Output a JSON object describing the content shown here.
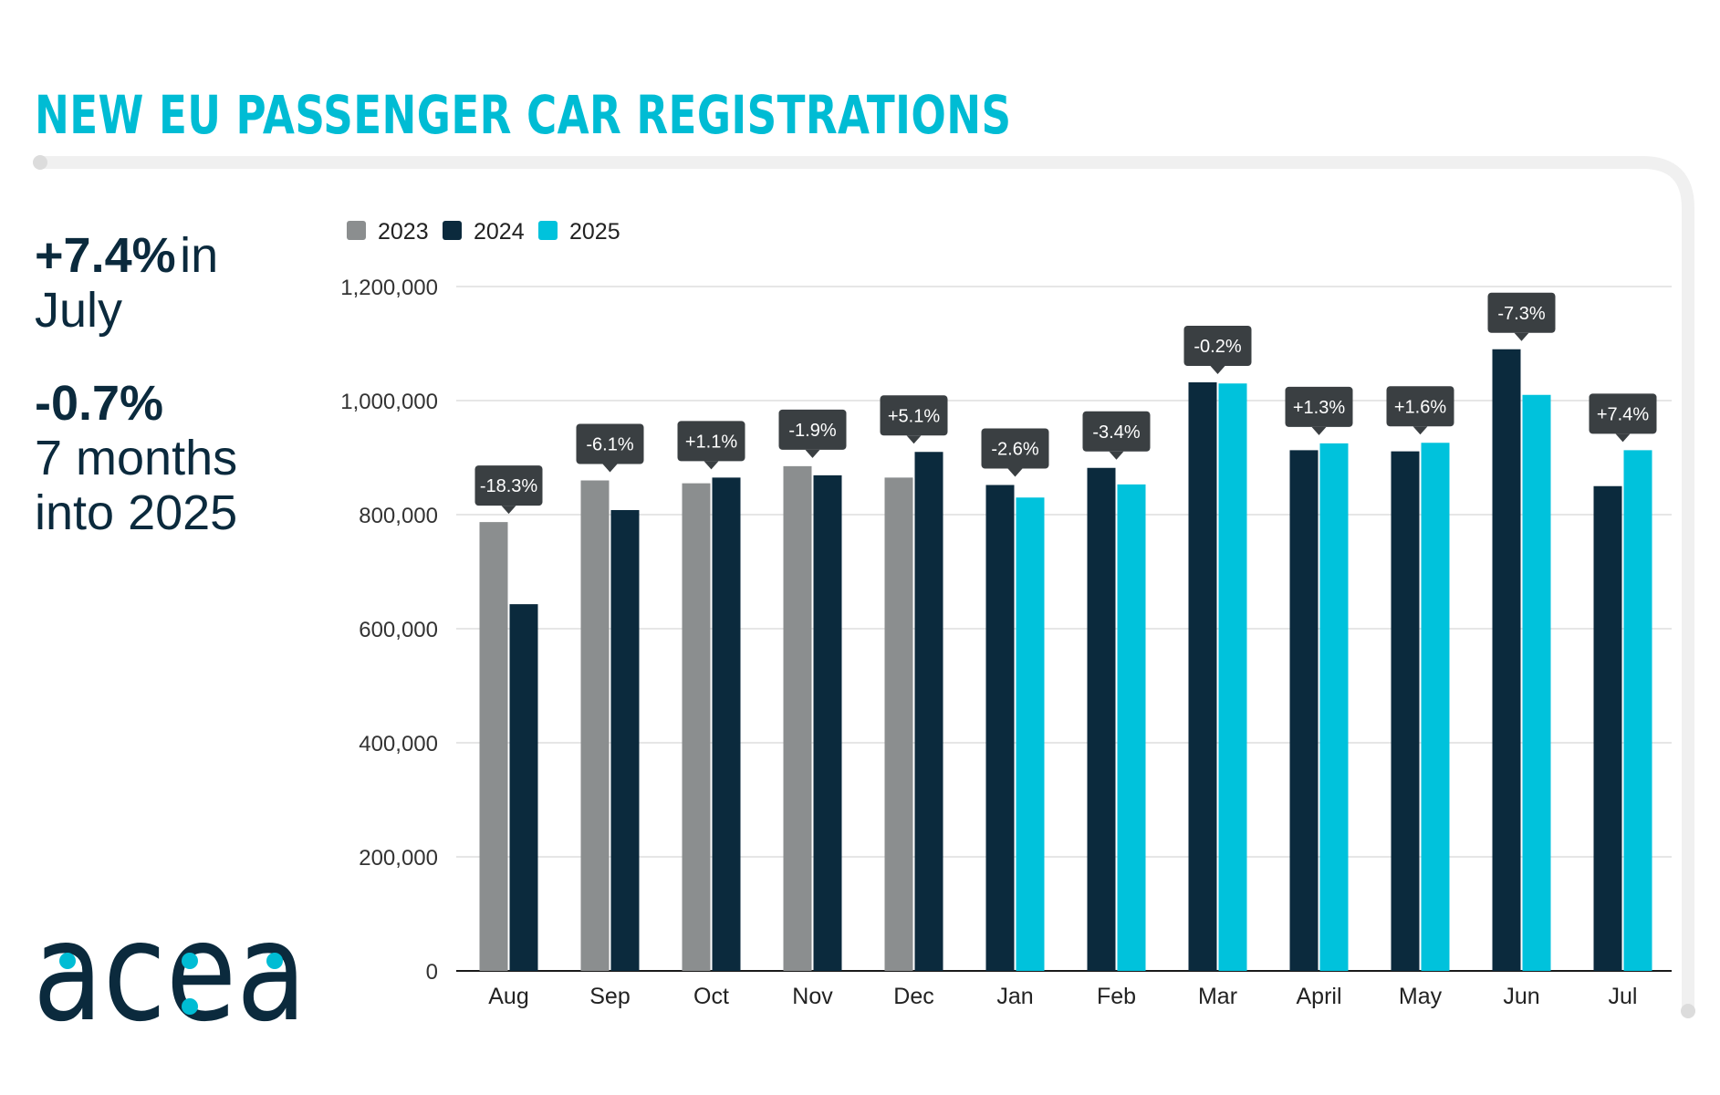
{
  "title": "NEW EU PASSENGER CAR REGISTRATIONS",
  "kpis": {
    "july_value": "+7.4%",
    "july_suffix": "in",
    "july_label": "July",
    "ytd_value": "-0.7%",
    "ytd_label_1": "7 months",
    "ytd_label_2": "into 2025"
  },
  "logo": {
    "text": "acea",
    "color": "#0b2a3d",
    "dot_color": "#00bcd4"
  },
  "colors": {
    "2023": "#8b8e8f",
    "2024": "#0b2a3d",
    "2025": "#00c2dc",
    "tag": "#3a3f42"
  },
  "chart_data": {
    "type": "bar",
    "categories": [
      "Aug",
      "Sep",
      "Oct",
      "Nov",
      "Dec",
      "Jan",
      "Feb",
      "Mar",
      "April",
      "May",
      "Jun",
      "Jul"
    ],
    "series": [
      {
        "name": "2023",
        "values": [
          787000,
          860000,
          855000,
          885000,
          865000,
          null,
          null,
          null,
          null,
          null,
          null,
          null
        ]
      },
      {
        "name": "2024",
        "values": [
          643000,
          808000,
          865000,
          869000,
          910000,
          852000,
          882000,
          1032000,
          913000,
          911000,
          1090000,
          850000
        ]
      },
      {
        "name": "2025",
        "values": [
          null,
          null,
          null,
          null,
          null,
          830000,
          853000,
          1030000,
          925000,
          926000,
          1010000,
          913000
        ]
      }
    ],
    "change_labels": [
      "-18.3%",
      "-6.1%",
      "+1.1%",
      "-1.9%",
      "+5.1%",
      "-2.6%",
      "-3.4%",
      "-0.2%",
      "+1.3%",
      "+1.6%",
      "-7.3%",
      "+7.4%"
    ],
    "yticks": [
      "0",
      "200,000",
      "400,000",
      "600,000",
      "800,000",
      "1,000,000",
      "1,200,000"
    ],
    "ylim": [
      0,
      1200000
    ],
    "legend": [
      "2023",
      "2024",
      "2025"
    ],
    "legend_position": "top-left",
    "grid": true,
    "xlabel": "",
    "ylabel": ""
  }
}
